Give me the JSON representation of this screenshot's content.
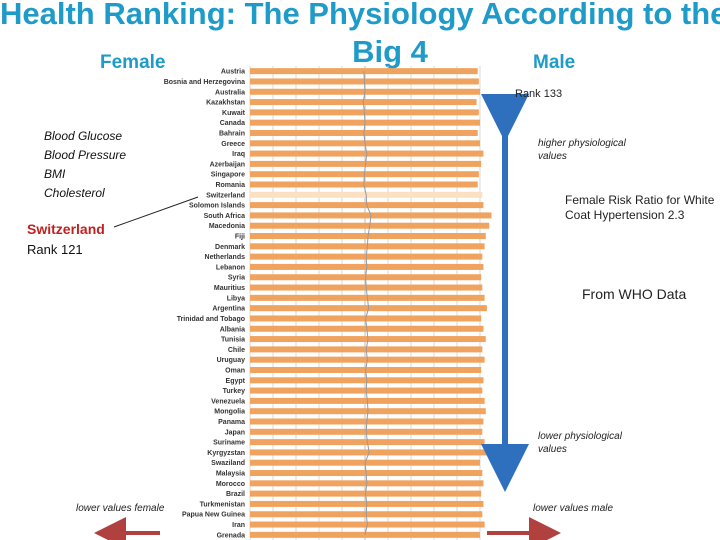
{
  "title": {
    "line1": "Health Ranking: The Physiology According to the",
    "line2": "Big 4"
  },
  "labels": {
    "female": "Female",
    "male": "Male"
  },
  "measures": [
    "Blood Glucose",
    "Blood Pressure",
    "BMI",
    "Cholesterol"
  ],
  "highlight": {
    "country": "Switzerland",
    "rank_text": "Rank 121"
  },
  "annotations": {
    "rank133": "Rank 133",
    "higher_values": "higher physiological values",
    "risk_ratio": "Female Risk Ratio for White Coat Hypertension 2.3",
    "source": "From WHO Data",
    "lower_values": "lower physiological values",
    "lower_female": "lower values female",
    "lower_male": "lower values male"
  },
  "colors": {
    "title": "#1f9bc9",
    "bar": "#f0a35e",
    "bar_highlight": "#fbe0c4",
    "up_down_arrow": "#2e6fbe",
    "bottom_arrow": "#b0413e",
    "switzerland": "#c0211f"
  },
  "chart_data": {
    "type": "bar",
    "orientation": "horizontal",
    "title": "Health Ranking: The Physiology According to the Big 4",
    "categories": [
      "Austria",
      "Bosnia and Herzegovina",
      "Australia",
      "Kazakhstan",
      "Kuwait",
      "Canada",
      "Bahrain",
      "Greece",
      "Iraq",
      "Azerbaijan",
      "Singapore",
      "Romania",
      "Switzerland",
      "Solomon Islands",
      "South Africa",
      "Macedonia",
      "Fiji",
      "Denmark",
      "Netherlands",
      "Lebanon",
      "Syria",
      "Mauritius",
      "Libya",
      "Argentina",
      "Trinidad and Tobago",
      "Albania",
      "Tunisia",
      "Chile",
      "Uruguay",
      "Oman",
      "Egypt",
      "Turkey",
      "Venezuela",
      "Mongolia",
      "Panama",
      "Japan",
      "Suriname",
      "Kyrgyzstan",
      "Swaziland",
      "Malaysia",
      "Morocco",
      "Brazil",
      "Turkmenistan",
      "Papua New Guinea",
      "Iran",
      "Grenada"
    ],
    "series": [
      {
        "name": "Female",
        "values": [
          1,
          1,
          1,
          1,
          1,
          1,
          1,
          1,
          1,
          1,
          1,
          1,
          1,
          1,
          1,
          1,
          1,
          1,
          1,
          1,
          1,
          1,
          1,
          1,
          1,
          1,
          1,
          1,
          1,
          1,
          1,
          1,
          1,
          1,
          1,
          1,
          1,
          1,
          1,
          1,
          1,
          1,
          1,
          1,
          1,
          1
        ]
      },
      {
        "name": "Male",
        "values": [
          0.98,
          0.99,
          1.0,
          0.97,
          0.99,
          1.0,
          0.98,
          1.0,
          1.03,
          1.01,
          0.99,
          0.98,
          1.02,
          1.03,
          1.1,
          1.08,
          1.05,
          1.04,
          1.02,
          1.03,
          1.01,
          1.02,
          1.04,
          1.06,
          1.01,
          1.03,
          1.05,
          1.02,
          1.04,
          1.01,
          1.03,
          1.02,
          1.04,
          1.05,
          1.03,
          1.02,
          1.04,
          1.07,
          1.0,
          1.02,
          1.03,
          1.01,
          1.03,
          1.02,
          1.04,
          1.0
        ]
      }
    ],
    "highlight_category": "Switzerland",
    "xlabel": "",
    "ylabel": "",
    "grid": true
  }
}
